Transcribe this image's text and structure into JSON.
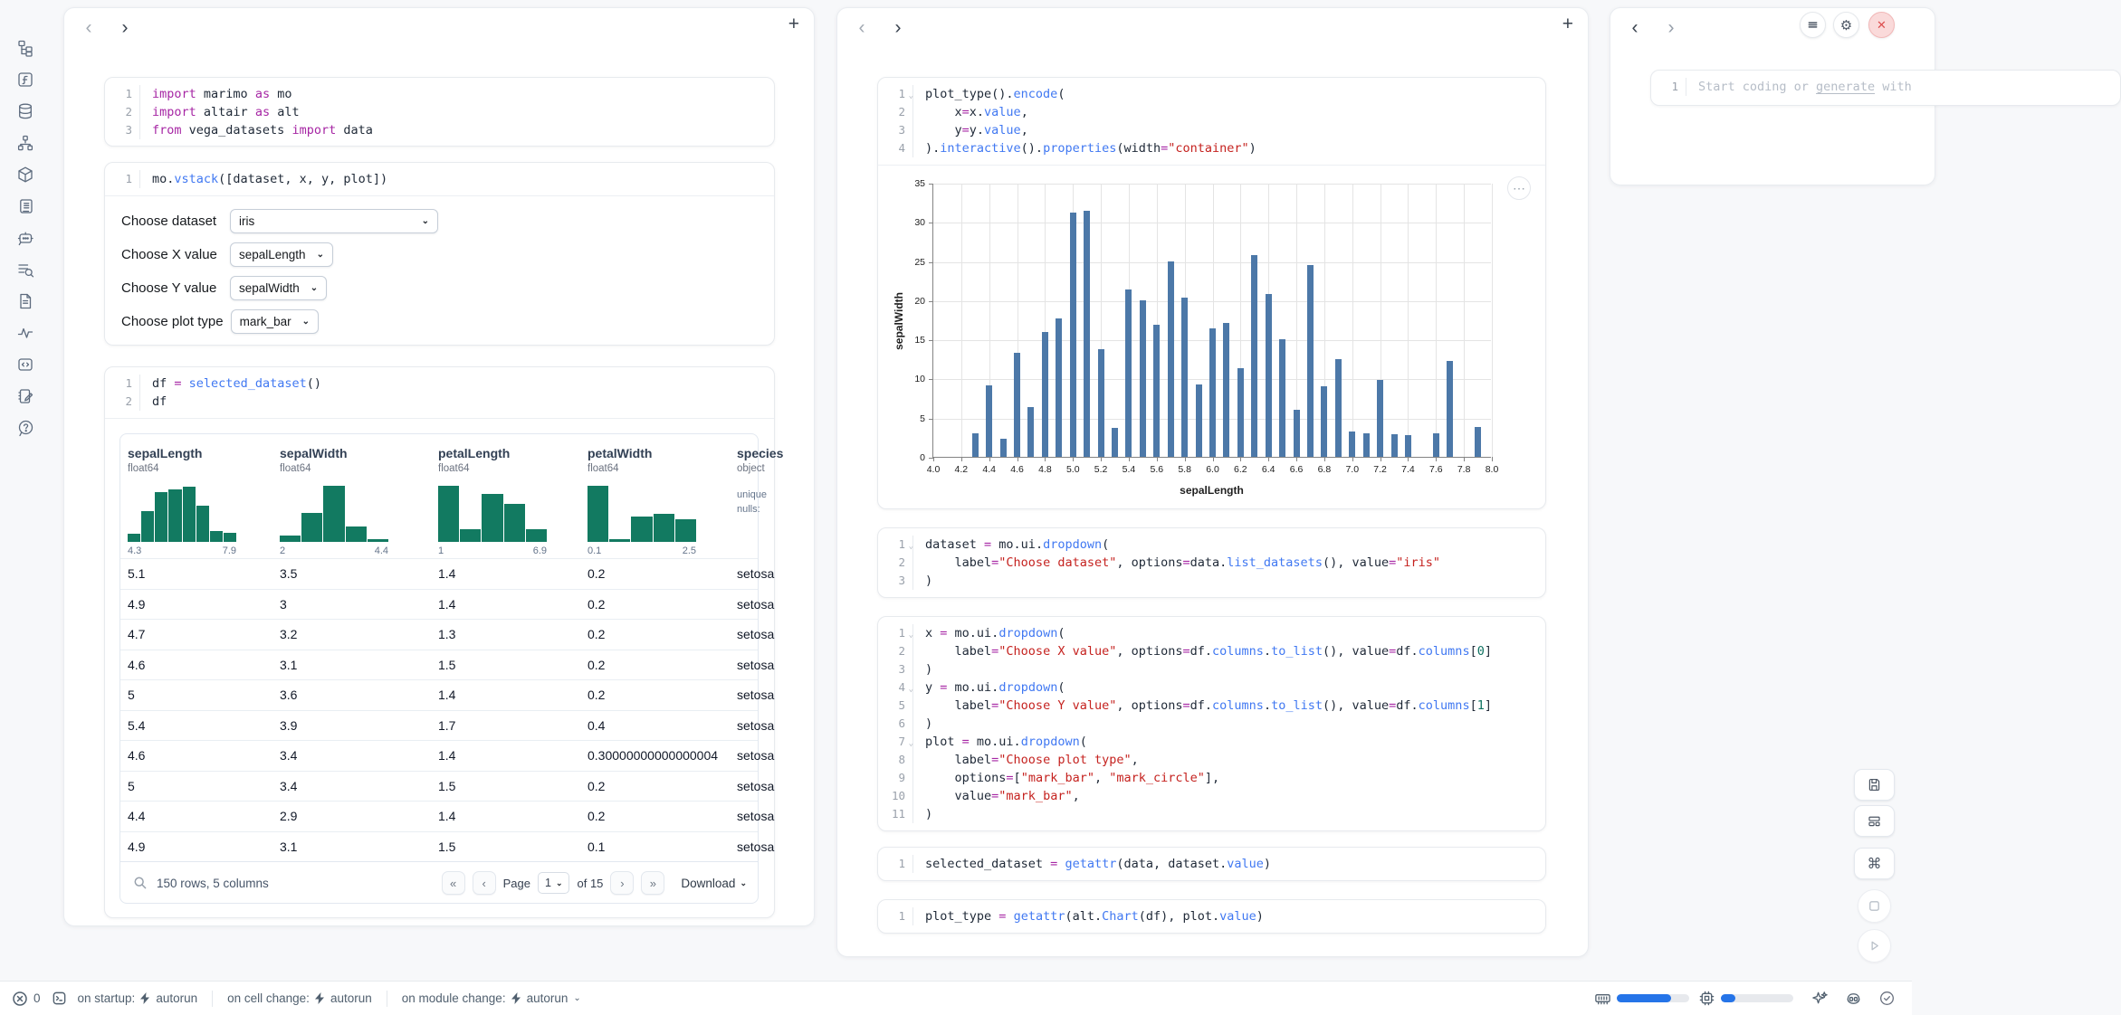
{
  "icons": {
    "prev": "‹",
    "next": "›",
    "plus": "+",
    "fold": "⌄",
    "caret": "⌄",
    "dots": "⋯",
    "gear": "⚙",
    "close": "✕",
    "cmd": "⌘",
    "pg_first": "«",
    "pg_prev": "‹",
    "pg_next": "›",
    "pg_last": "»"
  },
  "colors": {
    "accent_blue": "#2574e8",
    "chart_bar": "#4c78a8",
    "hist_teal": "#127a61",
    "close_red": "#dd4f4f",
    "code_keyword": "#a626a4",
    "code_function": "#4078f2",
    "code_string": "#c5221f",
    "code_number": "#0e7261"
  },
  "sidebar": {
    "items": [
      "file-explorer",
      "functions",
      "datasources",
      "dependency-graph",
      "packages",
      "documentation",
      "ai-chat",
      "logs",
      "snippets",
      "tracing",
      "outline",
      "scratchpad",
      "help"
    ]
  },
  "left_panel": {
    "cells": [
      {
        "lines": [
          {
            "n": "1",
            "tokens": [
              [
                "kw",
                "import"
              ],
              [
                "pl",
                " marimo "
              ],
              [
                "kw",
                "as"
              ],
              [
                "pl",
                " mo"
              ]
            ]
          },
          {
            "n": "2",
            "tokens": [
              [
                "kw",
                "import"
              ],
              [
                "pl",
                " altair "
              ],
              [
                "kw",
                "as"
              ],
              [
                "pl",
                " alt"
              ]
            ]
          },
          {
            "n": "3",
            "tokens": [
              [
                "kw",
                "from"
              ],
              [
                "pl",
                " vega_datasets "
              ],
              [
                "kw",
                "import"
              ],
              [
                "pl",
                " data"
              ]
            ]
          }
        ]
      },
      {
        "lines": [
          {
            "n": "1",
            "tokens": [
              [
                "pl",
                "mo."
              ],
              [
                "fn",
                "vstack"
              ],
              [
                "pl",
                "([dataset, x, y, plot])"
              ]
            ]
          }
        ],
        "controls": [
          {
            "label": "Choose dataset",
            "value": "iris",
            "wide": true
          },
          {
            "label": "Choose X value",
            "value": "sepalLength"
          },
          {
            "label": "Choose Y value",
            "value": "sepalWidth"
          },
          {
            "label": "Choose plot type",
            "value": "mark_bar"
          }
        ]
      },
      {
        "lines": [
          {
            "n": "1",
            "tokens": [
              [
                "pl",
                "df "
              ],
              [
                "op",
                "="
              ],
              [
                "pl",
                " "
              ],
              [
                "fn",
                "selected_dataset"
              ],
              [
                "pl",
                "()"
              ]
            ]
          },
          {
            "n": "2",
            "tokens": [
              [
                "pl",
                "df"
              ]
            ]
          }
        ]
      }
    ],
    "table": {
      "columns": [
        {
          "name": "sepalLength",
          "type": "float64",
          "hist": [
            0.14,
            0.55,
            0.88,
            0.93,
            0.98,
            0.65,
            0.19,
            0.16
          ],
          "min": "4.3",
          "max": "7.9"
        },
        {
          "name": "sepalWidth",
          "type": "float64",
          "hist": [
            0.12,
            0.52,
            1.0,
            0.28,
            0.05
          ],
          "min": "2",
          "max": "4.4"
        },
        {
          "name": "petalLength",
          "type": "float64",
          "hist": [
            1.0,
            0.22,
            0.85,
            0.68,
            0.22
          ],
          "min": "1",
          "max": "6.9"
        },
        {
          "name": "petalWidth",
          "type": "float64",
          "hist": [
            1.0,
            0.05,
            0.45,
            0.5,
            0.4
          ],
          "min": "0.1",
          "max": "2.5"
        },
        {
          "name": "species",
          "type": "object",
          "stats": [
            "unique",
            "nulls:"
          ]
        }
      ],
      "rows": [
        [
          "5.1",
          "3.5",
          "1.4",
          "0.2",
          "setosa"
        ],
        [
          "4.9",
          "3",
          "1.4",
          "0.2",
          "setosa"
        ],
        [
          "4.7",
          "3.2",
          "1.3",
          "0.2",
          "setosa"
        ],
        [
          "4.6",
          "3.1",
          "1.5",
          "0.2",
          "setosa"
        ],
        [
          "5",
          "3.6",
          "1.4",
          "0.2",
          "setosa"
        ],
        [
          "5.4",
          "3.9",
          "1.7",
          "0.4",
          "setosa"
        ],
        [
          "4.6",
          "3.4",
          "1.4",
          "0.30000000000000004",
          "setosa"
        ],
        [
          "5",
          "3.4",
          "1.5",
          "0.2",
          "setosa"
        ],
        [
          "4.4",
          "2.9",
          "1.4",
          "0.2",
          "setosa"
        ],
        [
          "4.9",
          "3.1",
          "1.5",
          "0.1",
          "setosa"
        ]
      ],
      "footer": {
        "summary": "150 rows, 5 columns",
        "page_label": "Page",
        "page_value": "1",
        "of_label": "of 15",
        "download": "Download"
      }
    }
  },
  "middle_panel": {
    "cells": [
      {
        "lines": [
          {
            "n": "1",
            "fold": true,
            "tokens": [
              [
                "pl",
                "plot_type()."
              ],
              [
                "fn",
                "encode"
              ],
              [
                "pl",
                "("
              ]
            ]
          },
          {
            "n": "2",
            "tokens": [
              [
                "pl",
                "    x"
              ],
              [
                "op",
                "="
              ],
              [
                "pl",
                "x."
              ],
              [
                "fn",
                "value"
              ],
              [
                "pl",
                ","
              ]
            ]
          },
          {
            "n": "3",
            "tokens": [
              [
                "pl",
                "    y"
              ],
              [
                "op",
                "="
              ],
              [
                "pl",
                "y."
              ],
              [
                "fn",
                "value"
              ],
              [
                "pl",
                ","
              ]
            ]
          },
          {
            "n": "4",
            "tokens": [
              [
                "pl",
                ")."
              ],
              [
                "fn",
                "interactive"
              ],
              [
                "pl",
                "()."
              ],
              [
                "fn",
                "properties"
              ],
              [
                "pl",
                "(width"
              ],
              [
                "op",
                "="
              ],
              [
                "str",
                "\"container\""
              ],
              [
                "pl",
                ")"
              ]
            ]
          }
        ]
      },
      {
        "lines": [
          {
            "n": "1",
            "fold": true,
            "tokens": [
              [
                "pl",
                "dataset "
              ],
              [
                "op",
                "="
              ],
              [
                "pl",
                " mo.ui."
              ],
              [
                "fn",
                "dropdown"
              ],
              [
                "pl",
                "("
              ]
            ]
          },
          {
            "n": "2",
            "tokens": [
              [
                "pl",
                "    label"
              ],
              [
                "op",
                "="
              ],
              [
                "str",
                "\"Choose dataset\""
              ],
              [
                "pl",
                ", options"
              ],
              [
                "op",
                "="
              ],
              [
                "pl",
                "data."
              ],
              [
                "fn",
                "list_datasets"
              ],
              [
                "pl",
                "(), value"
              ],
              [
                "op",
                "="
              ],
              [
                "str",
                "\"iris\""
              ]
            ]
          },
          {
            "n": "3",
            "tokens": [
              [
                "pl",
                ")"
              ]
            ]
          }
        ]
      },
      {
        "lines": [
          {
            "n": "1",
            "fold": true,
            "tokens": [
              [
                "pl",
                "x "
              ],
              [
                "op",
                "="
              ],
              [
                "pl",
                " mo.ui."
              ],
              [
                "fn",
                "dropdown"
              ],
              [
                "pl",
                "("
              ]
            ]
          },
          {
            "n": "2",
            "tokens": [
              [
                "pl",
                "    label"
              ],
              [
                "op",
                "="
              ],
              [
                "str",
                "\"Choose X value\""
              ],
              [
                "pl",
                ", options"
              ],
              [
                "op",
                "="
              ],
              [
                "pl",
                "df."
              ],
              [
                "fn",
                "columns"
              ],
              [
                "pl",
                "."
              ],
              [
                "fn",
                "to_list"
              ],
              [
                "pl",
                "(), value"
              ],
              [
                "op",
                "="
              ],
              [
                "pl",
                "df."
              ],
              [
                "fn",
                "columns"
              ],
              [
                "pl",
                "["
              ],
              [
                "num",
                "0"
              ],
              [
                "pl",
                "]"
              ]
            ]
          },
          {
            "n": "3",
            "tokens": [
              [
                "pl",
                ")"
              ]
            ]
          },
          {
            "n": "4",
            "fold": true,
            "tokens": [
              [
                "pl",
                "y "
              ],
              [
                "op",
                "="
              ],
              [
                "pl",
                " mo.ui."
              ],
              [
                "fn",
                "dropdown"
              ],
              [
                "pl",
                "("
              ]
            ]
          },
          {
            "n": "5",
            "tokens": [
              [
                "pl",
                "    label"
              ],
              [
                "op",
                "="
              ],
              [
                "str",
                "\"Choose Y value\""
              ],
              [
                "pl",
                ", options"
              ],
              [
                "op",
                "="
              ],
              [
                "pl",
                "df."
              ],
              [
                "fn",
                "columns"
              ],
              [
                "pl",
                "."
              ],
              [
                "fn",
                "to_list"
              ],
              [
                "pl",
                "(), value"
              ],
              [
                "op",
                "="
              ],
              [
                "pl",
                "df."
              ],
              [
                "fn",
                "columns"
              ],
              [
                "pl",
                "["
              ],
              [
                "num",
                "1"
              ],
              [
                "pl",
                "]"
              ]
            ]
          },
          {
            "n": "6",
            "tokens": [
              [
                "pl",
                ")"
              ]
            ]
          },
          {
            "n": "7",
            "fold": true,
            "tokens": [
              [
                "pl",
                "plot "
              ],
              [
                "op",
                "="
              ],
              [
                "pl",
                " mo.ui."
              ],
              [
                "fn",
                "dropdown"
              ],
              [
                "pl",
                "("
              ]
            ]
          },
          {
            "n": "8",
            "tokens": [
              [
                "pl",
                "    label"
              ],
              [
                "op",
                "="
              ],
              [
                "str",
                "\"Choose plot type\""
              ],
              [
                "pl",
                ","
              ]
            ]
          },
          {
            "n": "9",
            "tokens": [
              [
                "pl",
                "    options"
              ],
              [
                "op",
                "="
              ],
              [
                "pl",
                "["
              ],
              [
                "str",
                "\"mark_bar\""
              ],
              [
                "pl",
                ", "
              ],
              [
                "str",
                "\"mark_circle\""
              ],
              [
                "pl",
                "],"
              ]
            ]
          },
          {
            "n": "10",
            "tokens": [
              [
                "pl",
                "    value"
              ],
              [
                "op",
                "="
              ],
              [
                "str",
                "\"mark_bar\""
              ],
              [
                "pl",
                ","
              ]
            ]
          },
          {
            "n": "11",
            "tokens": [
              [
                "pl",
                ")"
              ]
            ]
          }
        ]
      },
      {
        "lines": [
          {
            "n": "1",
            "tokens": [
              [
                "pl",
                "selected_dataset "
              ],
              [
                "op",
                "="
              ],
              [
                "pl",
                " "
              ],
              [
                "fn",
                "getattr"
              ],
              [
                "pl",
                "(data, dataset."
              ],
              [
                "fn",
                "value"
              ],
              [
                "pl",
                ")"
              ]
            ]
          }
        ]
      },
      {
        "lines": [
          {
            "n": "1",
            "tokens": [
              [
                "pl",
                "plot_type "
              ],
              [
                "op",
                "="
              ],
              [
                "pl",
                " "
              ],
              [
                "fn",
                "getattr"
              ],
              [
                "pl",
                "(alt."
              ],
              [
                "fn",
                "Chart"
              ],
              [
                "pl",
                "(df), plot."
              ],
              [
                "fn",
                "value"
              ],
              [
                "pl",
                ")"
              ]
            ]
          }
        ]
      }
    ]
  },
  "right_panel": {
    "lines": [
      {
        "n": "1",
        "tokens": [
          [
            "ph",
            "Start coding or "
          ],
          [
            "phu",
            "generate"
          ],
          [
            "ph",
            " with"
          ]
        ]
      }
    ]
  },
  "chart_data": {
    "type": "bar",
    "title": "",
    "xlabel": "sepalLength",
    "ylabel": "sepalWidth",
    "xlim": [
      4.0,
      8.0
    ],
    "ylim": [
      0,
      35
    ],
    "x_tick_interval": 0.2,
    "y_ticks": [
      0,
      5,
      10,
      15,
      20,
      25,
      30,
      35
    ],
    "grid": true,
    "legend": "none",
    "bar_color": "#4c78a8",
    "x": [
      4.3,
      4.4,
      4.5,
      4.6,
      4.7,
      4.8,
      4.9,
      5.0,
      5.1,
      5.2,
      5.3,
      5.4,
      5.5,
      5.6,
      5.7,
      5.8,
      5.9,
      6.0,
      6.1,
      6.2,
      6.3,
      6.4,
      6.5,
      6.6,
      6.7,
      6.8,
      6.9,
      7.0,
      7.1,
      7.2,
      7.3,
      7.4,
      7.6,
      7.7,
      7.9
    ],
    "values": [
      3.0,
      9.1,
      2.3,
      13.3,
      6.4,
      15.9,
      17.7,
      31.2,
      31.4,
      13.7,
      3.7,
      21.4,
      20.0,
      16.9,
      24.9,
      20.3,
      9.2,
      16.4,
      17.1,
      11.3,
      25.8,
      20.8,
      15.0,
      6.0,
      24.5,
      9.0,
      12.5,
      3.2,
      3.0,
      9.8,
      2.9,
      2.8,
      3.0,
      12.2,
      3.8
    ]
  },
  "status_bar": {
    "errors": "0",
    "items": [
      {
        "label": "on startup:",
        "value": "autorun",
        "caret": false
      },
      {
        "label": "on cell change:",
        "value": "autorun",
        "caret": false
      },
      {
        "label": "on module change:",
        "value": "autorun",
        "caret": true
      }
    ],
    "ram_percent": 75,
    "cpu_percent": 20
  }
}
